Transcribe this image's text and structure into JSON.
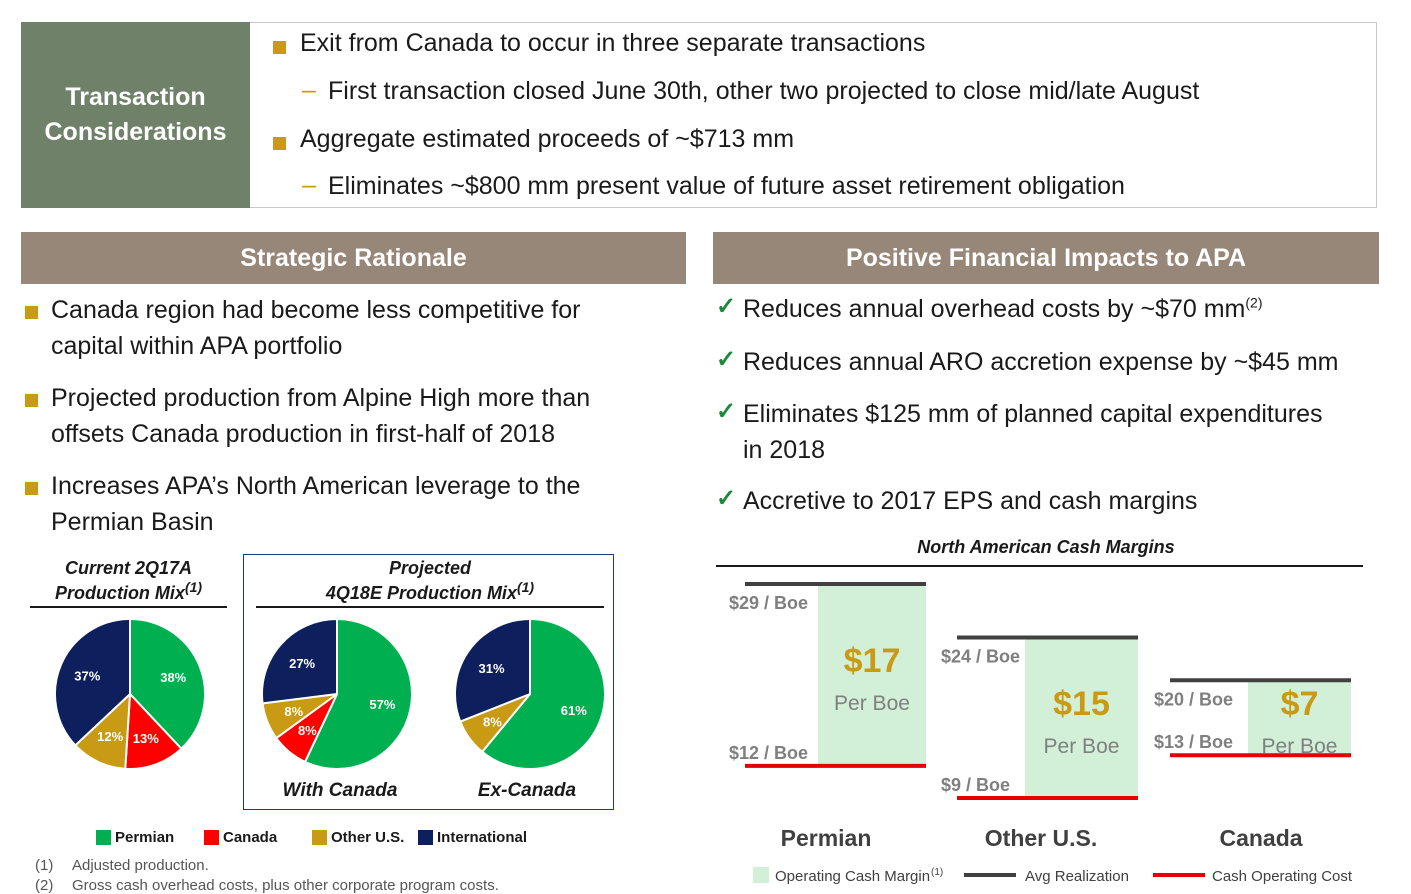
{
  "transaction": {
    "label_line1": "Transaction",
    "label_line2": "Considerations",
    "lines": [
      {
        "kind": "bullet",
        "text": "Exit from Canada to occur in three separate transactions"
      },
      {
        "kind": "dash",
        "text": "First transaction closed June 30th, other two projected to close mid/late August"
      },
      {
        "kind": "bullet",
        "text": "Aggregate estimated proceeds of ~$713 mm"
      },
      {
        "kind": "dash",
        "text": "Eliminates ~$800 mm present value of future asset retirement obligation"
      }
    ]
  },
  "strategic": {
    "title": "Strategic Rationale",
    "bullets": [
      {
        "l1": "Canada region had become less competitive for",
        "l2": "capital within APA portfolio"
      },
      {
        "l1": "Projected production from Alpine High more than",
        "l2": "offsets Canada production in first-half of 2018"
      },
      {
        "l1": "Increases APA’s North American leverage to the",
        "l2": "Permian Basin"
      }
    ]
  },
  "financial": {
    "title": "Positive Financial Impacts to APA",
    "checks": [
      {
        "l1": "Reduces annual overhead costs by ~$70 mm",
        "sup": "(2)",
        "l2": ""
      },
      {
        "l1": "Reduces annual ARO accretion expense by ~$45 mm",
        "sup": "",
        "l2": ""
      },
      {
        "l1": "Eliminates $125 mm of planned capital expenditures",
        "sup": "",
        "l2": "in 2018"
      },
      {
        "l1": "Accretive to 2017 EPS and cash margins",
        "sup": "",
        "l2": ""
      }
    ]
  },
  "colors": {
    "permian": "#00b050",
    "canada": "#ff0000",
    "other_us": "#c99a14",
    "international": "#0d1f5c",
    "margin_fill": "#d2f0d8",
    "margin_text": "#c99a14",
    "avg_line": "#404040",
    "cost_line": "#e60000"
  },
  "pies": {
    "current_title_l1": "Current 2Q17A",
    "current_title_l2": "Production Mix",
    "current_sup": "(1)",
    "projected_title_l1": "Projected",
    "projected_title_l2": "4Q18E Production Mix",
    "projected_sup": "(1)",
    "with_canada_label": "With Canada",
    "ex_canada_label": "Ex-Canada",
    "legend": [
      {
        "name": "Permian",
        "color": "#00b050"
      },
      {
        "name": "Canada",
        "color": "#ff0000"
      },
      {
        "name": "Other U.S.",
        "color": "#c99a14"
      },
      {
        "name": "International",
        "color": "#0d1f5c"
      }
    ]
  },
  "footnotes": [
    {
      "num": "(1)",
      "text": "Adjusted production."
    },
    {
      "num": "(2)",
      "text": "Gross cash overhead costs, plus other corporate program costs."
    }
  ],
  "chart_data": [
    {
      "type": "pie",
      "title": "Current 2Q17A Production Mix",
      "slices": [
        {
          "name": "Permian",
          "value": 38,
          "label": "38%"
        },
        {
          "name": "Canada",
          "value": 13,
          "label": "13%"
        },
        {
          "name": "Other U.S.",
          "value": 12,
          "label": "12%"
        },
        {
          "name": "International",
          "value": 37,
          "label": "37%"
        }
      ]
    },
    {
      "type": "pie",
      "title": "With Canada",
      "slices": [
        {
          "name": "Permian",
          "value": 57,
          "label": "57%"
        },
        {
          "name": "Canada",
          "value": 8,
          "label": "8%"
        },
        {
          "name": "Other U.S.",
          "value": 8,
          "label": "8%"
        },
        {
          "name": "International",
          "value": 27,
          "label": "27%"
        }
      ]
    },
    {
      "type": "pie",
      "title": "Ex-Canada",
      "slices": [
        {
          "name": "Permian",
          "value": 61,
          "label": "61%"
        },
        {
          "name": "Other U.S.",
          "value": 8,
          "label": "8%"
        },
        {
          "name": "International",
          "value": 31,
          "label": "31%"
        }
      ]
    },
    {
      "type": "bar",
      "title": "North American Cash Margins",
      "categories": [
        "Permian",
        "Other U.S.",
        "Canada"
      ],
      "avg_realization": [
        29,
        24,
        20
      ],
      "cash_operating_cost": [
        12,
        9,
        13
      ],
      "operating_cash_margin": [
        17,
        15,
        7
      ],
      "realization_labels": [
        "$29 / Boe",
        "$24 / Boe",
        "$20 / Boe"
      ],
      "cost_labels": [
        "$12 / Boe",
        "$9 / Boe",
        "$13 / Boe"
      ],
      "margin_labels": [
        "$17",
        "$15",
        "$7"
      ],
      "unit_label": "Per Boe",
      "legend": {
        "margin": "Operating Cash Margin",
        "margin_sup": "(1)",
        "avg": "Avg Realization",
        "cost": "Cash Operating Cost"
      }
    }
  ]
}
